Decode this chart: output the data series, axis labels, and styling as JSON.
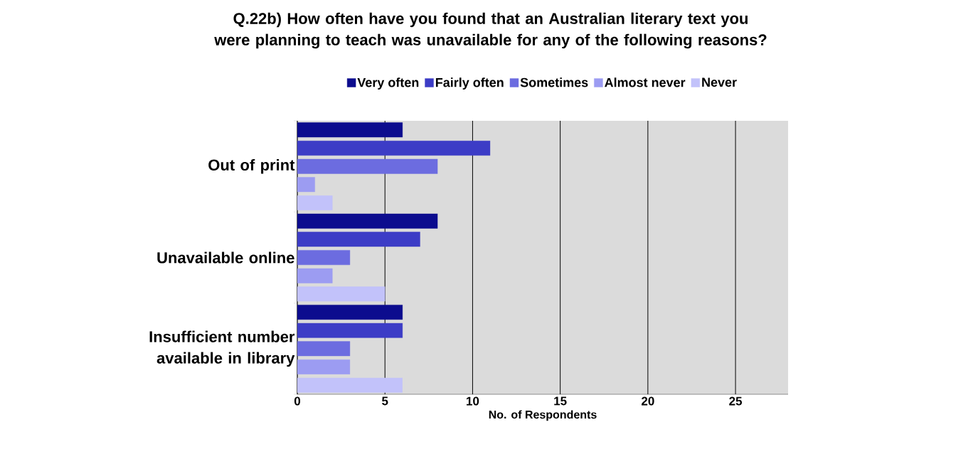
{
  "chart_data": {
    "type": "bar",
    "orientation": "horizontal",
    "title": "Q.22b) How often have you found that an Australian literary text you were planning to teach was unavailable for any of the following reasons?",
    "xlabel": "No. of Respondents",
    "categories": [
      "Out of print",
      "Unavailable online",
      "Insufficient number available in library"
    ],
    "series": [
      {
        "name": "Very often",
        "color": "#0c0c8e",
        "values": [
          6,
          8,
          6
        ]
      },
      {
        "name": "Fairly often",
        "color": "#3c3cc6",
        "values": [
          11,
          7,
          6
        ]
      },
      {
        "name": "Sometimes",
        "color": "#6c6ce0",
        "values": [
          8,
          3,
          3
        ]
      },
      {
        "name": "Almost never",
        "color": "#9c9cf2",
        "values": [
          1,
          2,
          3
        ]
      },
      {
        "name": "Never",
        "color": "#c2c2fa",
        "values": [
          2,
          5,
          6
        ]
      }
    ],
    "xlim": [
      0,
      28
    ],
    "xticks": [
      0,
      5,
      10,
      15,
      20,
      25
    ],
    "grid": "x",
    "legend": "top"
  }
}
